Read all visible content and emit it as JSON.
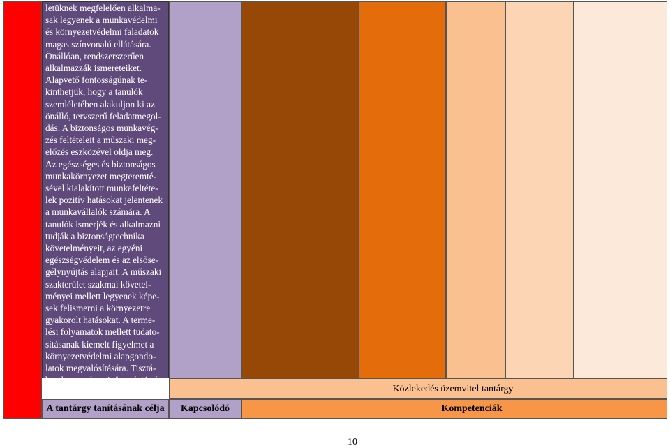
{
  "main": {
    "objective_text": "letüknek megfelelően alkalma-\nsak legyenek a munkavédelmi\nés környezetvédelmi faladatok\nmagas színvonalú ellátására.\nÖnállóan, rendszerszerűen\nalkalmazzák ismereteiket.\nAlapvető fontosságúnak te-\nkinthetjük, hogy a tanulók\nszemléletében alakuljon ki az\nönálló, tervszerű feladatmegol-\ndás. A biztonságos munkavég-\nzés feltételeit a műszaki meg-\nelőzés eszközével oldja meg.\nAz egészséges és biztonságos\nmunkakörnyezet megteremté-\nsével kialakított munkafeltéte-\nlek pozitív hatásokat jelentenek\na munkavállalók számára. A\ntanulók ismerjék és alkalmazni\ntudják a biztonságtechnika\nkövetelményeit, az egyéni\negészségvédelem és az elsőse-\ngélynyújtás alapjait. A műszaki\nszakterület szakmai követel-\nményei mellett legyenek képe-\nsek felismerni a környezetre\ngyakorolt hatásokat. A terme-\nlési folyamatok mellett tudato-\nsításanak kiemelt figyelmet a\nkörnyezetvédelmi alapgondo-\nlatok megvalósítására. Tisztá-\nban legyenek az információ- és\ntitokvédelmi, vagyonvédelmi\nés az üzembiztonsági előírá-\nsokkal, szabályokkal."
  },
  "table": {
    "subject_label": "Közlekedés üzemvitel tantárgy",
    "header_objective": "A tantárgy tanításának célja",
    "header_related": "Kapcsolódó",
    "header_competencies": "Kompetenciák"
  },
  "footer": {
    "page_number": "10"
  },
  "colors": {
    "red": "#ff0000",
    "purple_dark": "#5f4a7b",
    "lavender": "#b1a0c7",
    "brown": "#974806",
    "orange": "#e46c0a",
    "peach": "#fac090",
    "light_peach": "#fcd5b5",
    "cream": "#fde9d9",
    "header_orange": "#f79646"
  }
}
